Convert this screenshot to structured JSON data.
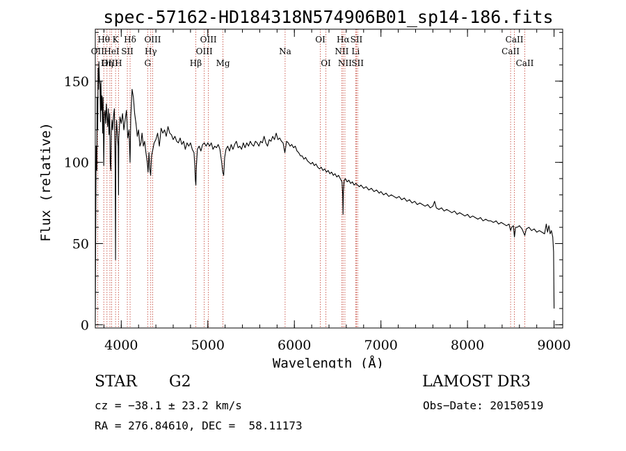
{
  "chart_data": {
    "type": "line",
    "title": "spec-57162-HD184318N574906B01_sp14-186.fits",
    "xlabel": "Wavelength (Å)",
    "ylabel": "Flux (relative)",
    "xlim": [
      3700,
      9100
    ],
    "ylim": [
      -2,
      182
    ],
    "xticks": [
      4000,
      5000,
      6000,
      7000,
      8000,
      9000
    ],
    "yticks": [
      0,
      50,
      100,
      150
    ],
    "x_minor_step": 200,
    "y_minor_step": 10,
    "series": [
      {
        "name": "spectrum",
        "points": [
          [
            3700,
            2
          ],
          [
            3705,
            60
          ],
          [
            3710,
            110
          ],
          [
            3718,
            95
          ],
          [
            3722,
            140
          ],
          [
            3728,
            120
          ],
          [
            3732,
            158
          ],
          [
            3738,
            145
          ],
          [
            3742,
            162
          ],
          [
            3748,
            150
          ],
          [
            3755,
            148
          ],
          [
            3760,
            125
          ],
          [
            3765,
            150
          ],
          [
            3770,
            132
          ],
          [
            3778,
            141
          ],
          [
            3785,
            118
          ],
          [
            3790,
            140
          ],
          [
            3798,
            98
          ],
          [
            3805,
            130
          ],
          [
            3812,
            132
          ],
          [
            3820,
            124
          ],
          [
            3828,
            136
          ],
          [
            3835,
            128
          ],
          [
            3842,
            122
          ],
          [
            3850,
            133
          ],
          [
            3858,
            117
          ],
          [
            3866,
            130
          ],
          [
            3872,
            100
          ],
          [
            3879,
            95
          ],
          [
            3886,
            119
          ],
          [
            3893,
            126
          ],
          [
            3900,
            120
          ],
          [
            3910,
            128
          ],
          [
            3920,
            133
          ],
          [
            3930,
            96
          ],
          [
            3934,
            40
          ],
          [
            3938,
            110
          ],
          [
            3946,
            126
          ],
          [
            3955,
            118
          ],
          [
            3964,
            110
          ],
          [
            3968,
            80
          ],
          [
            3972,
            115
          ],
          [
            3985,
            128
          ],
          [
            4000,
            124
          ],
          [
            4015,
            130
          ],
          [
            4030,
            120
          ],
          [
            4045,
            126
          ],
          [
            4060,
            132
          ],
          [
            4075,
            115
          ],
          [
            4090,
            120
          ],
          [
            4102,
            100
          ],
          [
            4110,
            128
          ],
          [
            4125,
            145
          ],
          [
            4140,
            140
          ],
          [
            4155,
            130
          ],
          [
            4170,
            124
          ],
          [
            4185,
            116
          ],
          [
            4200,
            120
          ],
          [
            4215,
            110
          ],
          [
            4228,
            112
          ],
          [
            4240,
            118
          ],
          [
            4255,
            110
          ],
          [
            4270,
            113
          ],
          [
            4285,
            106
          ],
          [
            4300,
            100
          ],
          [
            4310,
            94
          ],
          [
            4320,
            106
          ],
          [
            4330,
            96
          ],
          [
            4340,
            92
          ],
          [
            4350,
            104
          ],
          [
            4365,
            108
          ],
          [
            4380,
            112
          ],
          [
            4400,
            114
          ],
          [
            4420,
            118
          ],
          [
            4440,
            110
          ],
          [
            4460,
            121
          ],
          [
            4480,
            118
          ],
          [
            4500,
            120
          ],
          [
            4520,
            116
          ],
          [
            4540,
            122
          ],
          [
            4560,
            118
          ],
          [
            4580,
            117
          ],
          [
            4600,
            114
          ],
          [
            4620,
            116
          ],
          [
            4640,
            113
          ],
          [
            4660,
            112
          ],
          [
            4680,
            115
          ],
          [
            4700,
            111
          ],
          [
            4720,
            113
          ],
          [
            4740,
            108
          ],
          [
            4760,
            112
          ],
          [
            4780,
            110
          ],
          [
            4800,
            112
          ],
          [
            4820,
            108
          ],
          [
            4840,
            106
          ],
          [
            4850,
            98
          ],
          [
            4856,
            89
          ],
          [
            4862,
            86
          ],
          [
            4868,
            98
          ],
          [
            4880,
            108
          ],
          [
            4900,
            110
          ],
          [
            4920,
            107
          ],
          [
            4940,
            111
          ],
          [
            4960,
            112
          ],
          [
            4980,
            110
          ],
          [
            5000,
            112
          ],
          [
            5020,
            110
          ],
          [
            5040,
            112
          ],
          [
            5060,
            108
          ],
          [
            5080,
            110
          ],
          [
            5100,
            109
          ],
          [
            5120,
            111
          ],
          [
            5140,
            108
          ],
          [
            5160,
            100
          ],
          [
            5172,
            94
          ],
          [
            5183,
            92
          ],
          [
            5195,
            103
          ],
          [
            5210,
            108
          ],
          [
            5230,
            110
          ],
          [
            5250,
            107
          ],
          [
            5270,
            111
          ],
          [
            5290,
            108
          ],
          [
            5310,
            111
          ],
          [
            5330,
            113
          ],
          [
            5350,
            109
          ],
          [
            5370,
            110
          ],
          [
            5390,
            108
          ],
          [
            5410,
            112
          ],
          [
            5430,
            109
          ],
          [
            5450,
            112
          ],
          [
            5470,
            110
          ],
          [
            5490,
            113
          ],
          [
            5510,
            111
          ],
          [
            5530,
            110
          ],
          [
            5550,
            113
          ],
          [
            5570,
            112
          ],
          [
            5590,
            110
          ],
          [
            5610,
            113
          ],
          [
            5630,
            112
          ],
          [
            5650,
            116
          ],
          [
            5670,
            112
          ],
          [
            5690,
            110
          ],
          [
            5710,
            114
          ],
          [
            5730,
            113
          ],
          [
            5750,
            116
          ],
          [
            5770,
            114
          ],
          [
            5790,
            118
          ],
          [
            5810,
            114
          ],
          [
            5830,
            115
          ],
          [
            5850,
            113
          ],
          [
            5870,
            112
          ],
          [
            5890,
            106
          ],
          [
            5896,
            108
          ],
          [
            5910,
            113
          ],
          [
            5930,
            112
          ],
          [
            5950,
            110
          ],
          [
            5970,
            111
          ],
          [
            5990,
            109
          ],
          [
            6010,
            110
          ],
          [
            6030,
            107
          ],
          [
            6050,
            106
          ],
          [
            6070,
            104
          ],
          [
            6090,
            104
          ],
          [
            6110,
            102
          ],
          [
            6130,
            103
          ],
          [
            6150,
            101
          ],
          [
            6170,
            100
          ],
          [
            6190,
            99
          ],
          [
            6210,
            100
          ],
          [
            6230,
            98
          ],
          [
            6250,
            99
          ],
          [
            6270,
            97
          ],
          [
            6290,
            96
          ],
          [
            6310,
            97
          ],
          [
            6330,
            95
          ],
          [
            6350,
            96
          ],
          [
            6370,
            94
          ],
          [
            6390,
            95
          ],
          [
            6410,
            93
          ],
          [
            6430,
            94
          ],
          [
            6450,
            92
          ],
          [
            6470,
            93
          ],
          [
            6490,
            91
          ],
          [
            6510,
            92
          ],
          [
            6530,
            90
          ],
          [
            6550,
            88
          ],
          [
            6558,
            80
          ],
          [
            6562,
            68
          ],
          [
            6566,
            82
          ],
          [
            6575,
            89
          ],
          [
            6590,
            90
          ],
          [
            6610,
            88
          ],
          [
            6630,
            89
          ],
          [
            6650,
            87
          ],
          [
            6670,
            88
          ],
          [
            6690,
            86
          ],
          [
            6710,
            87
          ],
          [
            6730,
            86
          ],
          [
            6750,
            85
          ],
          [
            6770,
            86
          ],
          [
            6800,
            84
          ],
          [
            6830,
            85
          ],
          [
            6860,
            83
          ],
          [
            6890,
            84
          ],
          [
            6920,
            82
          ],
          [
            6950,
            83
          ],
          [
            6980,
            81
          ],
          [
            7000,
            82
          ],
          [
            7030,
            80
          ],
          [
            7060,
            81
          ],
          [
            7090,
            79
          ],
          [
            7120,
            80
          ],
          [
            7150,
            79
          ],
          [
            7180,
            78
          ],
          [
            7210,
            79
          ],
          [
            7240,
            77
          ],
          [
            7270,
            78
          ],
          [
            7300,
            76
          ],
          [
            7330,
            77
          ],
          [
            7360,
            75
          ],
          [
            7390,
            76
          ],
          [
            7420,
            74
          ],
          [
            7450,
            75
          ],
          [
            7480,
            74
          ],
          [
            7510,
            73
          ],
          [
            7540,
            74
          ],
          [
            7570,
            72
          ],
          [
            7600,
            73
          ],
          [
            7620,
            76
          ],
          [
            7640,
            72
          ],
          [
            7670,
            71
          ],
          [
            7700,
            72
          ],
          [
            7730,
            70
          ],
          [
            7760,
            71
          ],
          [
            7790,
            70
          ],
          [
            7820,
            69
          ],
          [
            7850,
            70
          ],
          [
            7880,
            68
          ],
          [
            7910,
            69
          ],
          [
            7940,
            68
          ],
          [
            7970,
            67
          ],
          [
            8000,
            68
          ],
          [
            8030,
            66
          ],
          [
            8060,
            67
          ],
          [
            8090,
            66
          ],
          [
            8120,
            65
          ],
          [
            8150,
            66
          ],
          [
            8180,
            64
          ],
          [
            8210,
            65
          ],
          [
            8240,
            64
          ],
          [
            8270,
            64
          ],
          [
            8300,
            63
          ],
          [
            8330,
            64
          ],
          [
            8360,
            62
          ],
          [
            8390,
            63
          ],
          [
            8420,
            62
          ],
          [
            8450,
            61
          ],
          [
            8480,
            62
          ],
          [
            8498,
            58
          ],
          [
            8510,
            60
          ],
          [
            8530,
            61
          ],
          [
            8542,
            54
          ],
          [
            8555,
            60
          ],
          [
            8575,
            60
          ],
          [
            8600,
            61
          ],
          [
            8630,
            59
          ],
          [
            8662,
            55
          ],
          [
            8680,
            59
          ],
          [
            8710,
            60
          ],
          [
            8740,
            58
          ],
          [
            8770,
            59
          ],
          [
            8800,
            57
          ],
          [
            8830,
            58
          ],
          [
            8860,
            57
          ],
          [
            8890,
            56
          ],
          [
            8910,
            62
          ],
          [
            8925,
            57
          ],
          [
            8940,
            61
          ],
          [
            8955,
            56
          ],
          [
            8970,
            58
          ],
          [
            8985,
            54
          ],
          [
            8995,
            45
          ],
          [
            9000,
            10
          ]
        ]
      }
    ],
    "spectral_lines": [
      {
        "label": "Hθ",
        "x": 3798,
        "row": 1
      },
      {
        "label": "OII",
        "x": 3727,
        "row": 2
      },
      {
        "label": "OIII",
        "x": 3869,
        "row": 3
      },
      {
        "label": "K",
        "x": 3934,
        "row": 1
      },
      {
        "label": "HeI",
        "x": 3889,
        "row": 2
      },
      {
        "label": "Hη",
        "x": 3835,
        "row": 3
      },
      {
        "label": "Hδ",
        "x": 4102,
        "row": 1
      },
      {
        "label": "SII",
        "x": 4070,
        "row": 2
      },
      {
        "label": "H",
        "x": 3968,
        "row": 3
      },
      {
        "label": "OIII",
        "x": 4363,
        "row": 1
      },
      {
        "label": "Hγ",
        "x": 4341,
        "row": 2
      },
      {
        "label": "G",
        "x": 4305,
        "row": 3
      },
      {
        "label": "OIII",
        "x": 5007,
        "row": 1
      },
      {
        "label": "OIII",
        "x": 4959,
        "row": 2
      },
      {
        "label": "Hβ",
        "x": 4861,
        "row": 3
      },
      {
        "label": "Mg",
        "x": 5175,
        "row": 3
      },
      {
        "label": "Na",
        "x": 5893,
        "row": 2
      },
      {
        "label": "OI",
        "x": 6300,
        "row": 1
      },
      {
        "label": "OI",
        "x": 6364,
        "row": 3
      },
      {
        "label": "Hα",
        "x": 6563,
        "row": 1
      },
      {
        "label": "NII",
        "x": 6548,
        "row": 2
      },
      {
        "label": "NII",
        "x": 6584,
        "row": 3
      },
      {
        "label": "SII",
        "x": 6717,
        "row": 1
      },
      {
        "label": "Li",
        "x": 6708,
        "row": 2
      },
      {
        "label": "SII",
        "x": 6731,
        "row": 3
      },
      {
        "label": "CaII",
        "x": 8542,
        "row": 1
      },
      {
        "label": "CaII",
        "x": 8498,
        "row": 2
      },
      {
        "label": "CaII",
        "x": 8662,
        "row": 3
      }
    ]
  },
  "info": {
    "object_type": "STAR",
    "spectral_class": "G2",
    "survey": "LAMOST DR3",
    "redshift": "cz = −38.1 ± 23.2 km/s",
    "obs_date": "Obs−Date: 20150519",
    "coordinates": "RA = 276.84610, DEC =  58.11173"
  },
  "colors": {
    "line_markers": "#c0392b",
    "spectrum": "#000000",
    "axes": "#000000",
    "background": "#ffffff"
  }
}
